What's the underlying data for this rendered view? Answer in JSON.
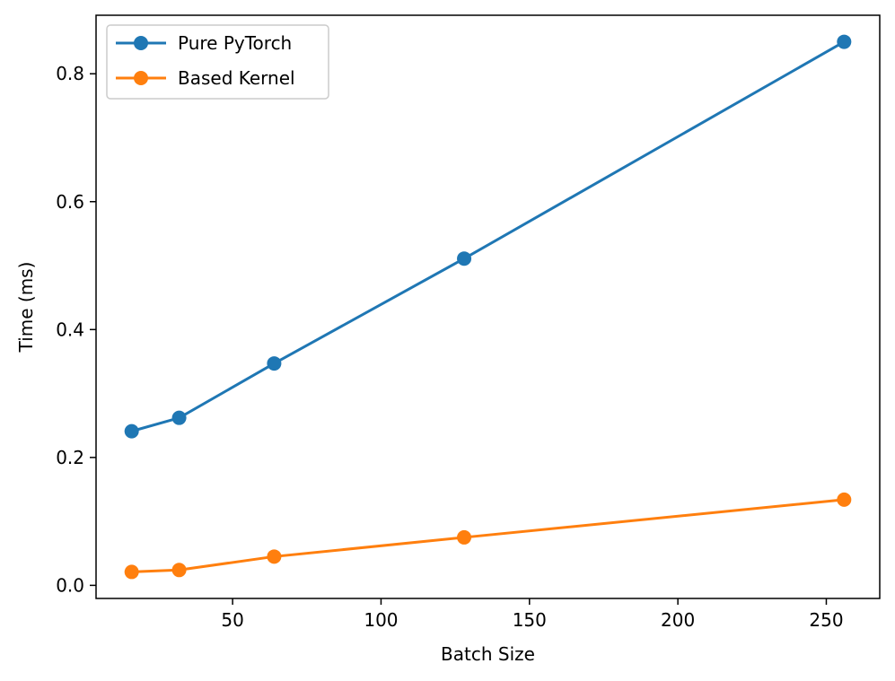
{
  "chart_data": {
    "type": "line",
    "title": "",
    "xlabel": "Batch Size",
    "ylabel": "Time (ms)",
    "x": [
      16,
      32,
      64,
      128,
      256
    ],
    "xlim": [
      4,
      268
    ],
    "ylim": [
      -0.0205,
      0.8915
    ],
    "xticks": [
      50,
      100,
      150,
      200,
      250
    ],
    "yticks": [
      0.0,
      0.2,
      0.4,
      0.6,
      0.8
    ],
    "xtick_labels": [
      "50",
      "100",
      "150",
      "200",
      "250"
    ],
    "ytick_labels": [
      "0.0",
      "0.2",
      "0.4",
      "0.6",
      "0.8"
    ],
    "grid": false,
    "legend_position": "upper-left",
    "series": [
      {
        "name": "Pure PyTorch",
        "color": "#1f77b4",
        "values": [
          0.241,
          0.262,
          0.347,
          0.511,
          0.85
        ]
      },
      {
        "name": "Based Kernel",
        "color": "#ff7f0e",
        "values": [
          0.021,
          0.024,
          0.045,
          0.075,
          0.134
        ]
      }
    ]
  }
}
